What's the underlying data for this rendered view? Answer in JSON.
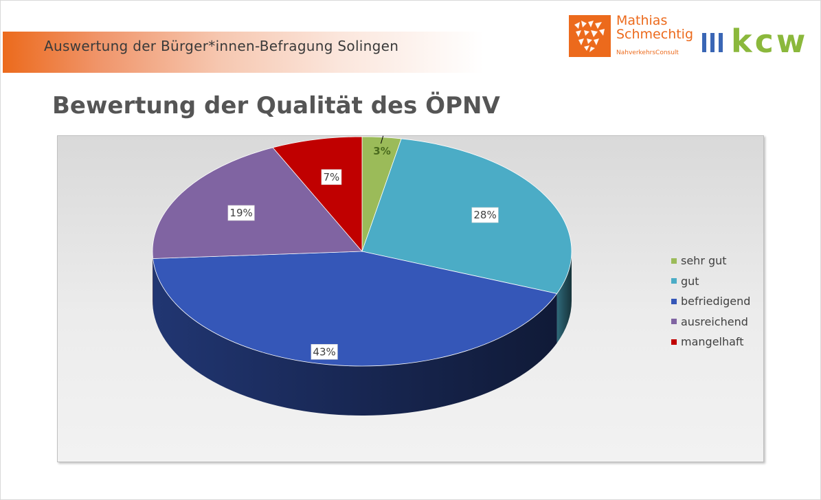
{
  "header": {
    "title": "Auswertung der Bürger*innen-Befragung Solingen"
  },
  "logos": {
    "ms_line1": "Mathias",
    "ms_line2": "Schmechtig",
    "ms_sub": "NahverkehrsConsult",
    "kcw": "kcw"
  },
  "page_title": "Bewertung der Qualität des ÖPNV",
  "chart_data": {
    "type": "pie",
    "title": "",
    "categories": [
      "sehr gut",
      "gut",
      "befriedigend",
      "ausreichend",
      "mangelhaft"
    ],
    "values": [
      3,
      28,
      43,
      19,
      7
    ],
    "labels": [
      "3%",
      "28%",
      "43%",
      "19%",
      "7%"
    ],
    "unit": "%",
    "colors": [
      "#9bbb59",
      "#4bacc6",
      "#3557b8",
      "#8064a2",
      "#c00000"
    ],
    "legend_position": "right",
    "style": "3d"
  }
}
